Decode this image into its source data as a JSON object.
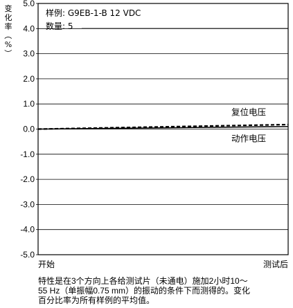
{
  "chart_data": {
    "type": "line",
    "ylabel": "变化率（%）",
    "ylim": [
      -5.0,
      5.0
    ],
    "yticks": [
      "5.0",
      "4.0",
      "3.0",
      "2.0",
      "1.0",
      "0.0",
      "-1.0",
      "-2.0",
      "-3.0",
      "-4.0",
      "-5.0"
    ],
    "grid": true,
    "x_categories": [
      "开始",
      "测试后"
    ],
    "annotations": [
      "样例: G9EB-1-B 12 VDC",
      "数量: 5"
    ],
    "series": [
      {
        "name": "复位电压",
        "values": [
          0.0,
          0.18
        ],
        "style": "dashed",
        "color": "#000000"
      },
      {
        "name": "动作电压",
        "values": [
          0.0,
          0.1
        ],
        "style": "solid",
        "color": "#000000"
      }
    ]
  },
  "caption": {
    "line1": "特性是在3个方向上各给测试片（未通电）施加2小时10～",
    "line2": "55 Hz（单振幅0.75 mm）的振动的条件下而测得的。变化",
    "line3": "百分比率为所有样例的平均值。"
  }
}
